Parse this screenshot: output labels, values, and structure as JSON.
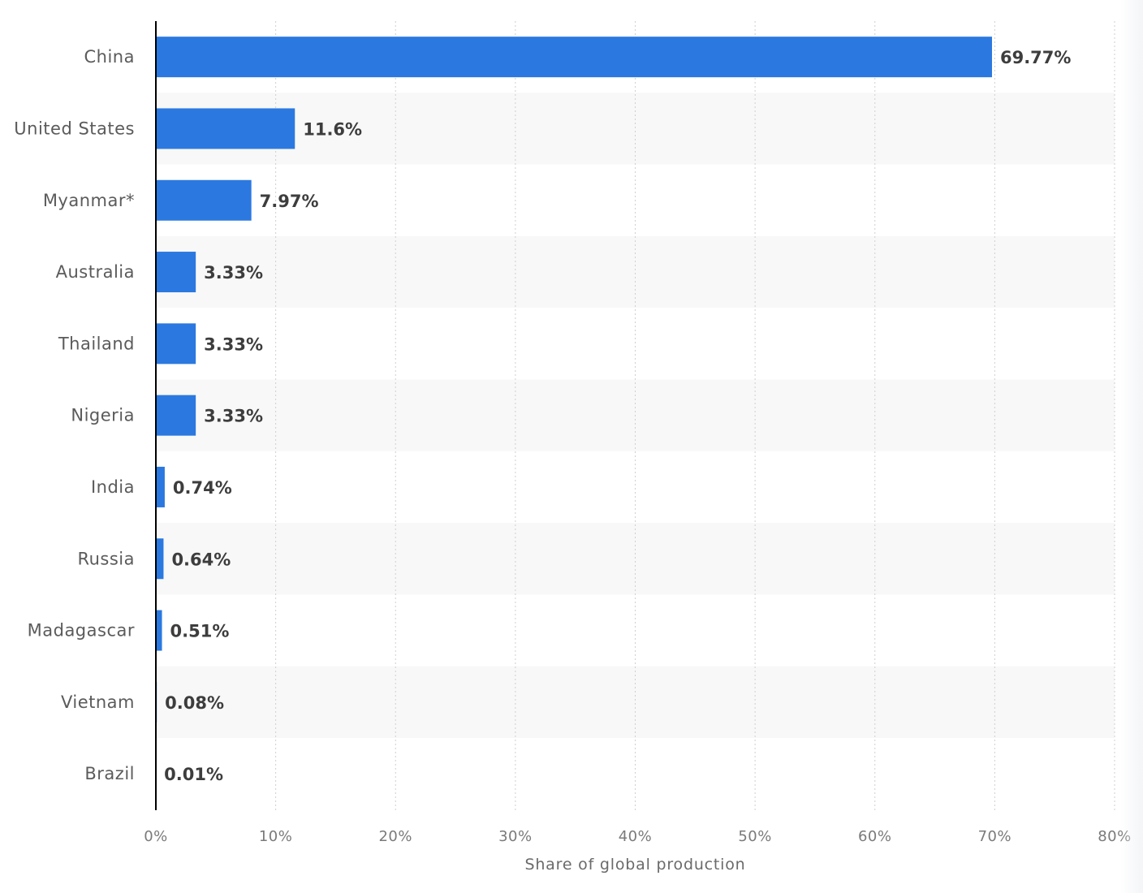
{
  "chart_data": {
    "type": "bar",
    "orientation": "horizontal",
    "categories": [
      "China",
      "United States",
      "Myanmar*",
      "Australia",
      "Thailand",
      "Nigeria",
      "India",
      "Russia",
      "Madagascar",
      "Vietnam",
      "Brazil"
    ],
    "values": [
      69.77,
      11.6,
      7.97,
      3.33,
      3.33,
      3.33,
      0.74,
      0.64,
      0.51,
      0.08,
      0.01
    ],
    "value_labels": [
      "69.77%",
      "11.6%",
      "7.97%",
      "3.33%",
      "3.33%",
      "3.33%",
      "0.74%",
      "0.64%",
      "0.51%",
      "0.08%",
      "0.01%"
    ],
    "xlabel": "Share of global production",
    "ylabel": "",
    "xlim": [
      0,
      80
    ],
    "xticks": [
      0,
      10,
      20,
      30,
      40,
      50,
      60,
      70,
      80
    ],
    "xtick_labels": [
      "0%",
      "10%",
      "20%",
      "30%",
      "40%",
      "50%",
      "60%",
      "70%",
      "80%"
    ],
    "grid": "vertical dashed",
    "legend": "none",
    "colors": {
      "bar": "#2b78e0",
      "band": "#f8f8f8",
      "grid": "#cfcfcf",
      "axis": "#000000"
    }
  }
}
